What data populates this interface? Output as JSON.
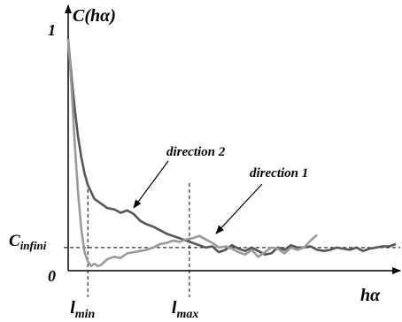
{
  "chart_data": {
    "type": "line",
    "title": "",
    "ylabel": "C(hα)",
    "xlabel": "hα",
    "xlim": [
      0,
      100
    ],
    "ylim": [
      0,
      1.1
    ],
    "y_tick_labels": {
      "top": "1",
      "bottom": "0"
    },
    "grid": false,
    "reference_line": {
      "label": "C_infini",
      "label_main": "C",
      "label_sub": "infini",
      "y": 0.1
    },
    "markers": [
      {
        "label": "l_min",
        "label_main": "l",
        "label_sub": "min",
        "x": 6
      },
      {
        "label": "l_max",
        "label_main": "l",
        "label_sub": "max",
        "x": 37
      }
    ],
    "annotations": [
      {
        "text": "direction 2",
        "series": "direction 2"
      },
      {
        "text": "direction 1",
        "series": "direction 1"
      }
    ],
    "series": [
      {
        "name": "direction 2",
        "color": "#555555",
        "x": [
          0,
          1,
          2,
          3,
          4,
          5,
          6,
          7,
          8,
          10,
          12,
          14,
          16,
          18,
          20,
          22,
          24,
          26,
          28,
          30,
          32,
          34,
          36,
          38,
          40,
          42,
          44,
          46,
          48,
          50,
          52,
          54,
          56,
          58,
          60,
          62,
          64,
          66,
          68,
          70,
          72,
          74,
          76,
          78,
          80,
          82,
          84,
          86,
          88,
          90,
          92,
          94,
          96,
          98,
          100
        ],
        "y": [
          1.0,
          0.84,
          0.7,
          0.58,
          0.49,
          0.42,
          0.37,
          0.34,
          0.31,
          0.29,
          0.27,
          0.265,
          0.25,
          0.26,
          0.245,
          0.215,
          0.2,
          0.19,
          0.175,
          0.16,
          0.15,
          0.14,
          0.13,
          0.12,
          0.11,
          0.1,
          0.105,
          0.08,
          0.09,
          0.11,
          0.095,
          0.085,
          0.1,
          0.085,
          0.07,
          0.075,
          0.1,
          0.09,
          0.11,
          0.1,
          0.1,
          0.105,
          0.09,
          0.085,
          0.09,
          0.1,
          0.095,
          0.09,
          0.1,
          0.085,
          0.095,
          0.1,
          0.105,
          0.105,
          0.115
        ]
      },
      {
        "name": "direction 1",
        "color": "#999999",
        "x": [
          0,
          1,
          2,
          3,
          4,
          5,
          6,
          7,
          8,
          9,
          10,
          12,
          14,
          16,
          18,
          20,
          22,
          24,
          26,
          28,
          30,
          32,
          34,
          36,
          38,
          40,
          42,
          44,
          46,
          48,
          50,
          52,
          54,
          56,
          58,
          60,
          62,
          64,
          66,
          68,
          70,
          72,
          74,
          76
        ],
        "y": [
          1.0,
          0.8,
          0.55,
          0.34,
          0.18,
          0.08,
          0.04,
          0.02,
          0.03,
          0.02,
          0.025,
          0.05,
          0.06,
          0.055,
          0.075,
          0.08,
          0.085,
          0.09,
          0.1,
          0.115,
          0.12,
          0.13,
          0.125,
          0.135,
          0.14,
          0.15,
          0.135,
          0.12,
          0.1,
          0.105,
          0.095,
          0.08,
          0.07,
          0.09,
          0.06,
          0.08,
          0.1,
          0.095,
          0.075,
          0.1,
          0.09,
          0.1,
          0.13,
          0.155
        ]
      }
    ]
  }
}
